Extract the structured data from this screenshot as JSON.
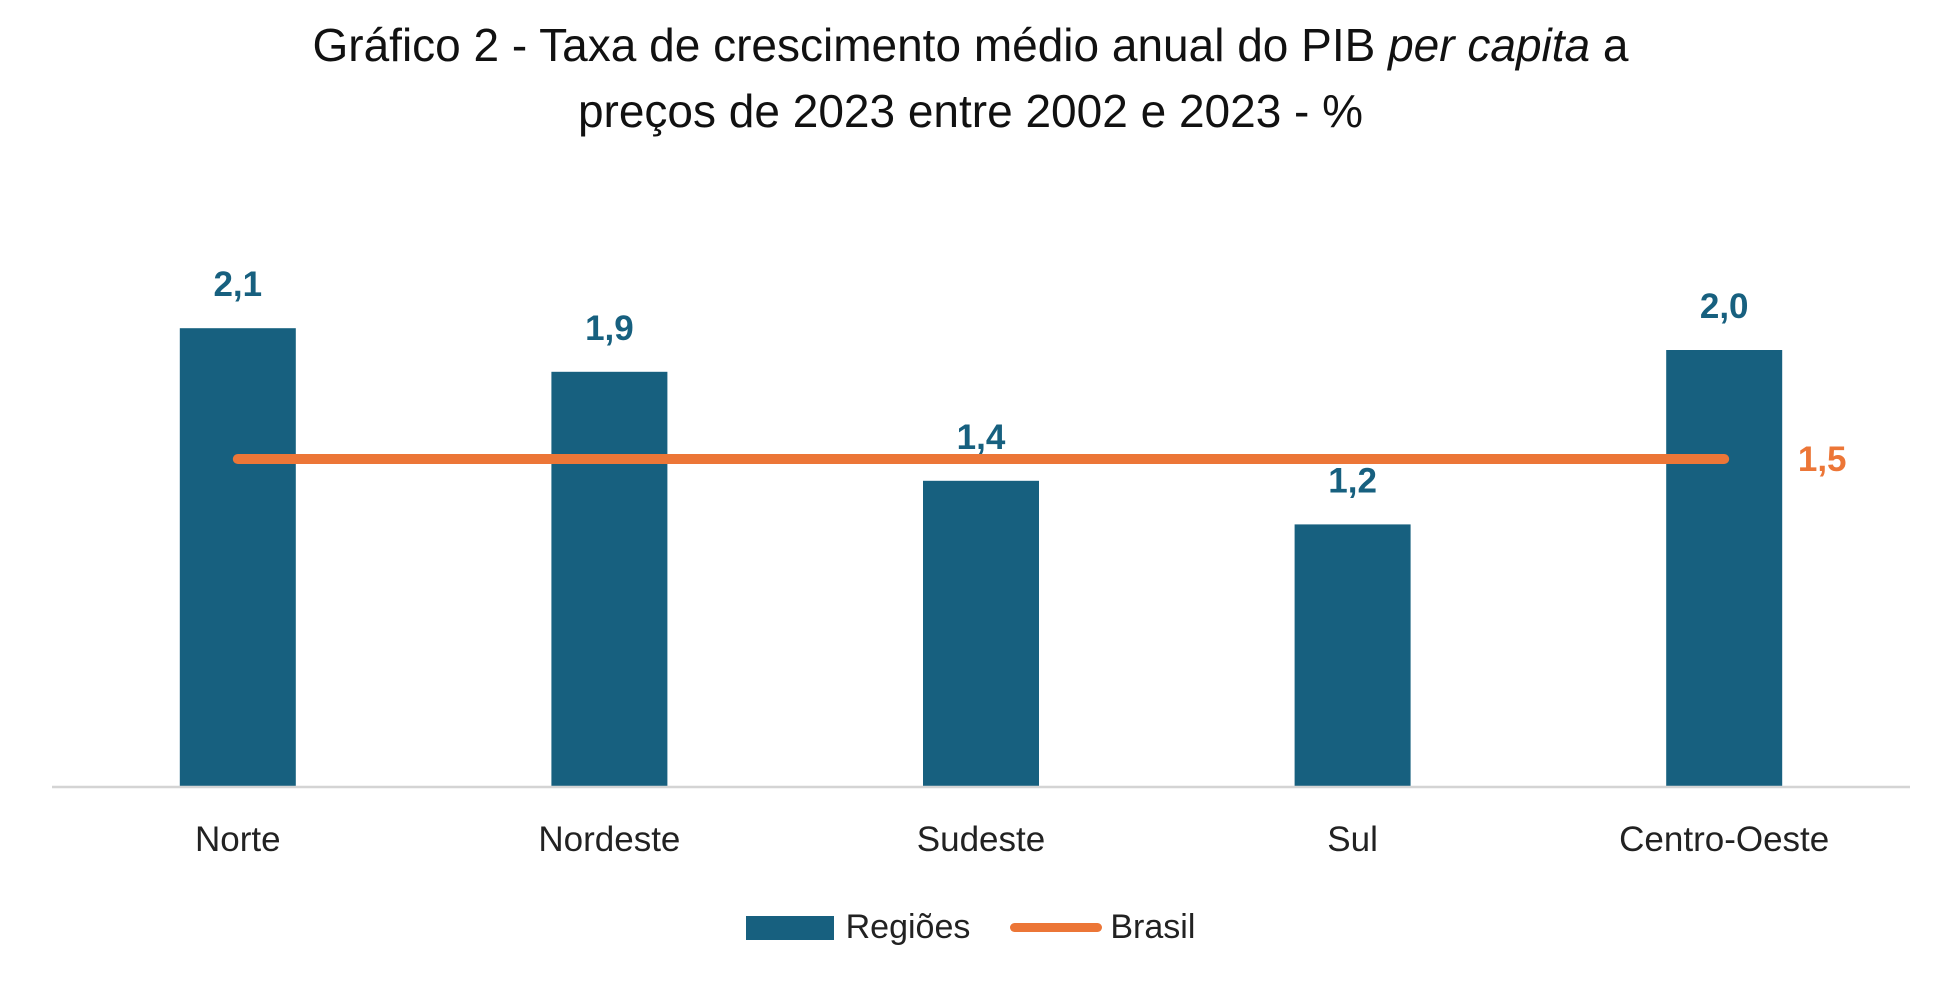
{
  "chart_data": {
    "type": "bar",
    "title_parts": {
      "line1_prefix": "Gráfico 2 - Taxa de crescimento médio anual do PIB ",
      "line1_italic": "per capita",
      "line1_suffix": " a",
      "line2": "preços de 2023 entre 2002 e 2023 - %"
    },
    "categories": [
      "Norte",
      "Nordeste",
      "Sudeste",
      "Sul",
      "Centro-Oeste"
    ],
    "series": [
      {
        "name": "Regiões",
        "type": "bar",
        "values": [
          2.1,
          1.9,
          1.4,
          1.2,
          2.0
        ],
        "labels": [
          "2,1",
          "1,9",
          "1,4",
          "1,2",
          "2,0"
        ]
      },
      {
        "name": "Brasil",
        "type": "line",
        "values": [
          1.5,
          1.5,
          1.5,
          1.5,
          1.5
        ],
        "end_label": "1,5"
      }
    ],
    "ylim": [
      0,
      2.5
    ],
    "xlabel": "",
    "ylabel": "",
    "grid": false,
    "legend_position": "bottom",
    "colors": {
      "bar": "#17607f",
      "line": "#ec7637",
      "axis": "#d4d4d4",
      "bar_label": "#17607f",
      "line_label": "#ec7637",
      "category_label": "#222222"
    }
  }
}
